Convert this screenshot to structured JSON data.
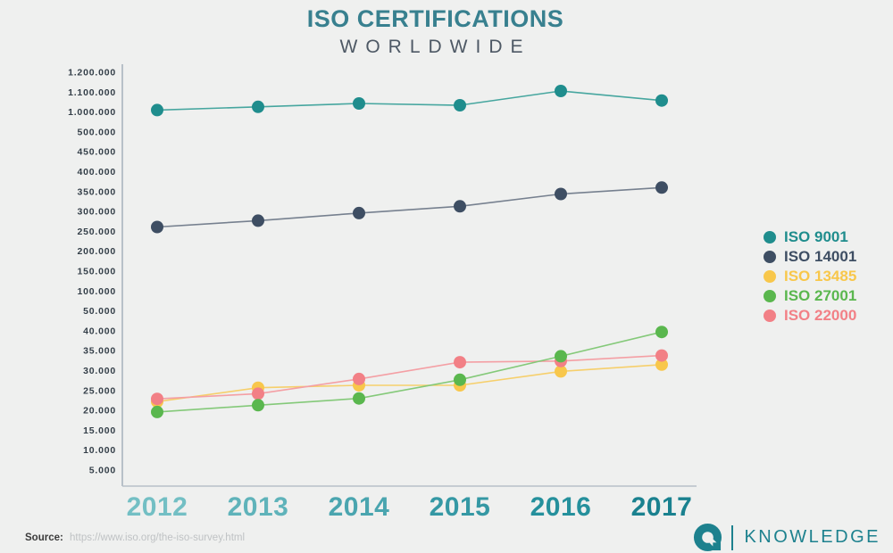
{
  "title": "ISO CERTIFICATIONS",
  "subtitle": "WORLDWIDE",
  "source": {
    "label": "Source:",
    "url_text": "https://www.iso.org/the-iso-survey.html"
  },
  "logo": {
    "mark": "Q",
    "text": "KNOWLEDGE",
    "color": "#1d818e"
  },
  "colors": {
    "background": "#eff0ef",
    "axis": "#b7c0c8",
    "title": "#38808f",
    "subtitle": "#4e5965",
    "tick_label": "#333e48"
  },
  "chart_data": {
    "type": "line",
    "title": "ISO CERTIFICATIONS WORLDWIDE",
    "xlabel": "",
    "ylabel": "",
    "grid": false,
    "legend_position": "right",
    "x": [
      "2012",
      "2013",
      "2014",
      "2015",
      "2016",
      "2017"
    ],
    "x_label_colors": [
      "#73bfc4",
      "#5fb3ba",
      "#4aa5af",
      "#3598a4",
      "#25909c",
      "#1a818f"
    ],
    "y_ticks": [
      "1.200.000",
      "1.100.000",
      "1.000.000",
      "500.000",
      "450.000",
      "400.000",
      "350.000",
      "300.000",
      "250.000",
      "200.000",
      "150.000",
      "100.000",
      "50.000",
      "40.000",
      "35.000",
      "30.000",
      "25.000",
      "20.000",
      "15.000",
      "10.000",
      "5.000"
    ],
    "y_tick_values": [
      1200000,
      1100000,
      1000000,
      500000,
      450000,
      400000,
      350000,
      300000,
      250000,
      200000,
      150000,
      100000,
      50000,
      40000,
      35000,
      30000,
      25000,
      20000,
      15000,
      10000,
      5000
    ],
    "y_axis_note": "non-linear broken scale, ticks evenly spaced",
    "series": [
      {
        "name": "ISO 9001",
        "color": "#1f8d8d",
        "line_color": "#46a69f",
        "values": [
          1010000,
          1026000,
          1043000,
          1034000,
          1106000,
          1058000
        ]
      },
      {
        "name": "ISO 14001",
        "color": "#3e4e63",
        "line_color": "#76808f",
        "values": [
          261000,
          277000,
          296000,
          313000,
          344000,
          360000
        ]
      },
      {
        "name": "ISO 13485",
        "color": "#f8c74b",
        "line_color": "#f6cf6b",
        "values": [
          22200,
          25700,
          26300,
          26300,
          29800,
          31500
        ]
      },
      {
        "name": "ISO 27001",
        "color": "#5ab74e",
        "line_color": "#84c979",
        "values": [
          19600,
          21300,
          23000,
          27700,
          33600,
          39700
        ]
      },
      {
        "name": "ISO 22000",
        "color": "#f28086",
        "line_color": "#f49fa4",
        "values": [
          22900,
          24200,
          27900,
          32100,
          32400,
          33800
        ]
      }
    ]
  }
}
